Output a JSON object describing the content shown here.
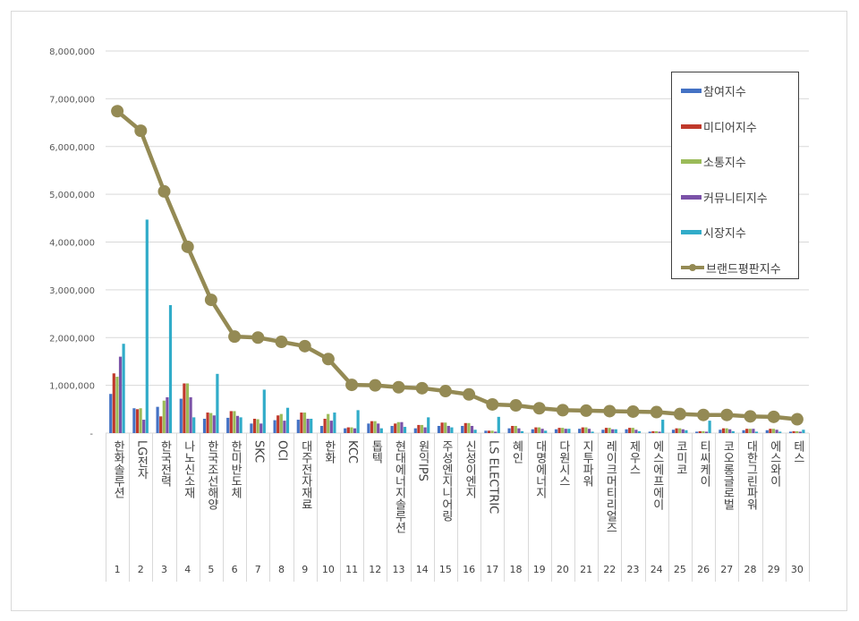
{
  "chart_data": {
    "type": "bar",
    "title": "",
    "xlabel": "",
    "ylabel": "",
    "ylim": [
      0,
      8000000
    ],
    "yticks": [
      0,
      1000000,
      2000000,
      3000000,
      4000000,
      5000000,
      6000000,
      7000000,
      8000000
    ],
    "ytick_labels": [
      "-",
      "1,000,000",
      "2,000,000",
      "3,000,000",
      "4,000,000",
      "5,000,000",
      "6,000,000",
      "7,000,000",
      "8,000,000"
    ],
    "grid": true,
    "legend_position": "top-right",
    "ranks": [
      "1",
      "2",
      "3",
      "4",
      "5",
      "6",
      "7",
      "8",
      "9",
      "10",
      "11",
      "12",
      "13",
      "14",
      "15",
      "16",
      "17",
      "18",
      "19",
      "20",
      "21",
      "22",
      "23",
      "24",
      "25",
      "26",
      "27",
      "28",
      "29",
      "30"
    ],
    "categories": [
      "한화솔루션",
      "LG전자",
      "한국전력",
      "나노신소재",
      "한국조선해양",
      "한미반도체",
      "SKC",
      "OCI",
      "대주전자재료",
      "한화",
      "KCC",
      "톱텍",
      "현대에너지솔루션",
      "원익IPS",
      "주성엔지니어링",
      "신성이엔지",
      "LS ELECTRIC",
      "혜인",
      "대명에너지",
      "다원시스",
      "지투파워",
      "레이크머티리얼즈",
      "제우스",
      "에스에프에이",
      "코미코",
      "티씨케이",
      "코오롱글로벌",
      "대한그린파워",
      "에스와이",
      "테스"
    ],
    "series": [
      {
        "name": "참여지수",
        "type": "bar",
        "color": "#4472c4",
        "values": [
          820000,
          520000,
          550000,
          720000,
          300000,
          320000,
          200000,
          270000,
          280000,
          150000,
          100000,
          200000,
          150000,
          100000,
          150000,
          150000,
          50000,
          100000,
          80000,
          80000,
          90000,
          70000,
          80000,
          30000,
          70000,
          30000,
          70000,
          60000,
          60000,
          30000
        ]
      },
      {
        "name": "미디어지수",
        "type": "bar",
        "color": "#c0392b",
        "values": [
          1250000,
          500000,
          350000,
          1040000,
          430000,
          460000,
          300000,
          370000,
          430000,
          300000,
          120000,
          250000,
          200000,
          170000,
          220000,
          210000,
          50000,
          150000,
          120000,
          110000,
          120000,
          110000,
          110000,
          40000,
          100000,
          40000,
          100000,
          90000,
          90000,
          40000
        ]
      },
      {
        "name": "소통지수",
        "type": "bar",
        "color": "#9bbb59",
        "values": [
          1180000,
          520000,
          680000,
          1040000,
          420000,
          460000,
          290000,
          400000,
          430000,
          400000,
          120000,
          250000,
          230000,
          170000,
          220000,
          210000,
          50000,
          150000,
          120000,
          110000,
          120000,
          110000,
          110000,
          40000,
          100000,
          40000,
          100000,
          90000,
          90000,
          40000
        ]
      },
      {
        "name": "커뮤니티지수",
        "type": "bar",
        "color": "#7b52a8",
        "values": [
          1600000,
          280000,
          750000,
          750000,
          370000,
          360000,
          200000,
          260000,
          300000,
          260000,
          100000,
          200000,
          230000,
          120000,
          150000,
          150000,
          30000,
          100000,
          90000,
          90000,
          90000,
          80000,
          70000,
          30000,
          80000,
          30000,
          80000,
          90000,
          70000,
          30000
        ]
      },
      {
        "name": "시장지수",
        "type": "bar",
        "color": "#31acc9",
        "values": [
          1870000,
          4470000,
          2680000,
          330000,
          1240000,
          330000,
          910000,
          530000,
          300000,
          430000,
          480000,
          100000,
          130000,
          330000,
          120000,
          70000,
          340000,
          40000,
          50000,
          90000,
          30000,
          80000,
          40000,
          280000,
          60000,
          260000,
          40000,
          30000,
          30000,
          70000
        ]
      },
      {
        "name": "브랜드평판지수",
        "type": "line",
        "color": "#948a54",
        "values": [
          6740000,
          6330000,
          5060000,
          3900000,
          2790000,
          2020000,
          2000000,
          1910000,
          1820000,
          1550000,
          1010000,
          1000000,
          960000,
          940000,
          880000,
          810000,
          600000,
          580000,
          520000,
          480000,
          470000,
          460000,
          450000,
          440000,
          400000,
          380000,
          380000,
          350000,
          340000,
          290000
        ]
      }
    ]
  }
}
